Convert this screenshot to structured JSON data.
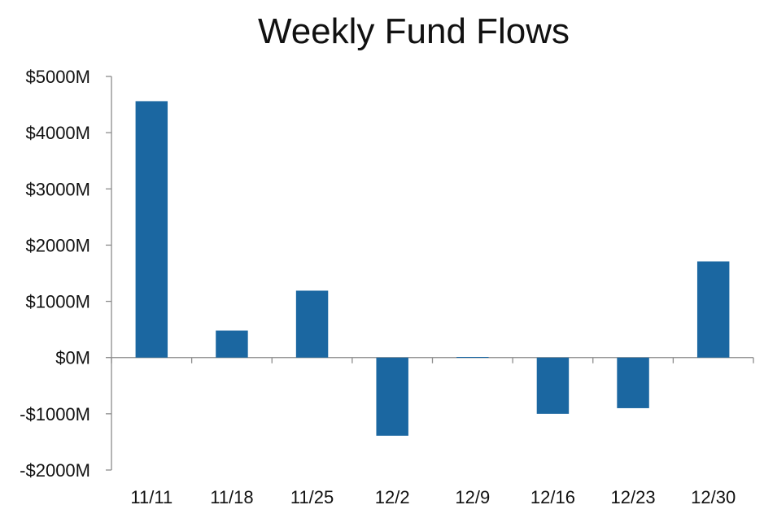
{
  "chart_data": {
    "type": "bar",
    "title": "Weekly Fund Flows",
    "xlabel": "",
    "ylabel": "",
    "categories": [
      "11/11",
      "11/18",
      "11/25",
      "12/2",
      "12/9",
      "12/16",
      "12/23",
      "12/30"
    ],
    "values": [
      4560,
      480,
      1190,
      -1390,
      10,
      -1000,
      -900,
      1710
    ],
    "unit": "$M",
    "ylim": [
      -2000,
      5000
    ],
    "yticks": [
      5000,
      4000,
      3000,
      2000,
      1000,
      0,
      -1000,
      -2000
    ],
    "ytick_labels": [
      "$5000M",
      "$4000M",
      "$3000M",
      "$2000M",
      "$1000M",
      "$0M",
      "-$1000M",
      "-$2000M"
    ],
    "bar_color": "#1b67a1",
    "grid": false,
    "legend": "none"
  }
}
